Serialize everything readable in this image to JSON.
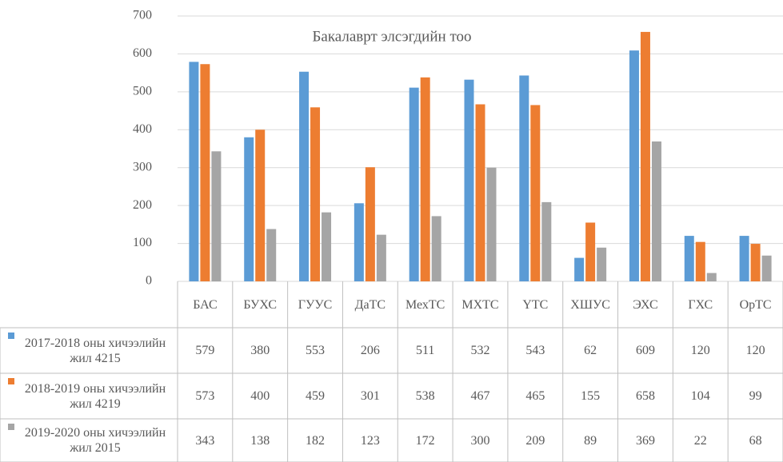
{
  "chart_data": {
    "type": "bar",
    "subtitle": "Бакалаврт элсэгдийн тоо",
    "categories": [
      "БАС",
      "БУХС",
      "ГУУС",
      "ДаТС",
      "МехТС",
      "МХТС",
      "ҮТС",
      "ХШУС",
      "ЭХС",
      "ГХС",
      "ОрТС"
    ],
    "series": [
      {
        "name": "2017-2018 оны хичээлийн жил 4215",
        "color": "#5b9bd5",
        "values": [
          579,
          380,
          553,
          206,
          511,
          532,
          543,
          62,
          609,
          120,
          120
        ]
      },
      {
        "name": "2018-2019 оны хичээлийн жил 4219",
        "color": "#ed7d31",
        "values": [
          573,
          400,
          459,
          301,
          538,
          467,
          465,
          155,
          658,
          104,
          99
        ]
      },
      {
        "name": "2019-2020 оны хичээлийн жил 2015",
        "color": "#a5a5a5",
        "values": [
          343,
          138,
          182,
          123,
          172,
          300,
          209,
          89,
          369,
          22,
          68
        ]
      }
    ],
    "ylim": [
      0,
      700
    ],
    "yticks": [
      0,
      100,
      200,
      300,
      400,
      500,
      600,
      700
    ],
    "grid": true
  }
}
